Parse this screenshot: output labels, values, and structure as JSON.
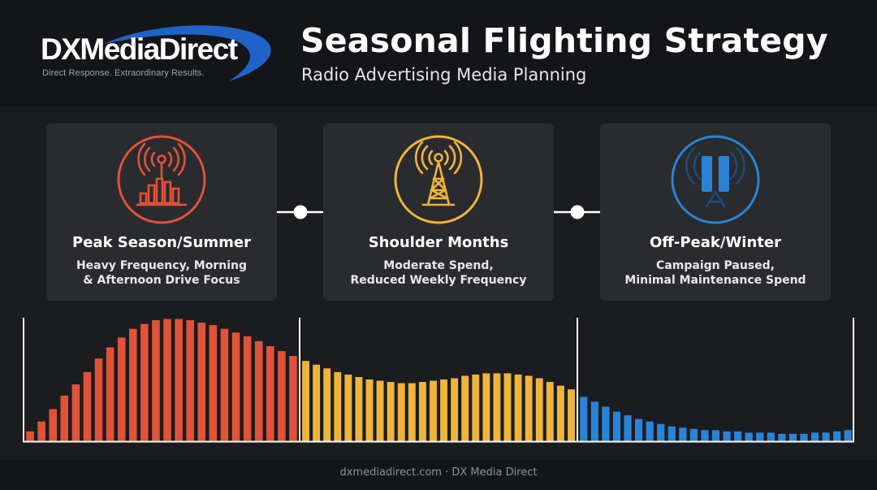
{
  "brand": {
    "name": "DXMediaDirect",
    "tagline": "Direct Response. Extraordinary Results."
  },
  "header": {
    "title": "Seasonal Flighting Strategy",
    "subtitle": "Radio Advertising Media Planning"
  },
  "phases": [
    {
      "title": "Peak Season/Summer",
      "desc_line1": "Heavy Frequency, Morning",
      "desc_line2": "& Afternoon Drive Focus",
      "icon": "radio-signal-bars-icon",
      "color": "#e0533a"
    },
    {
      "title": "Shoulder Months",
      "desc_line1": "Moderate Spend,",
      "desc_line2": "Reduced Weekly Frequency",
      "icon": "radio-tower-icon",
      "color": "#efb53a"
    },
    {
      "title": "Off-Peak/Winter",
      "desc_line1": "Campaign Paused,",
      "desc_line2": "Minimal Maintenance Spend",
      "icon": "paused-tower-icon",
      "color": "#2a83d6"
    }
  ],
  "chart_data": {
    "type": "bar",
    "title": "",
    "xlabel": "",
    "ylabel": "",
    "ylim": [
      0,
      100
    ],
    "grid": false,
    "legend": "none",
    "series": [
      {
        "phase": "Peak Season/Summer",
        "color": "#e0533a",
        "values": [
          8,
          16,
          26,
          37,
          46,
          56,
          67,
          76,
          84,
          91,
          95,
          98,
          99,
          99,
          98,
          96,
          94,
          91,
          88,
          85,
          81,
          77,
          73,
          69
        ]
      },
      {
        "phase": "Shoulder Months",
        "color": "#efb53a",
        "values": [
          65,
          62,
          59,
          56,
          54,
          52,
          50,
          49,
          48,
          47,
          47,
          48,
          49,
          50,
          51,
          53,
          54,
          55,
          55,
          55,
          54,
          53,
          51,
          48,
          45,
          42
        ]
      },
      {
        "phase": "Off-Peak/Winter",
        "color": "#2a83d6",
        "values": [
          36,
          32,
          28,
          24,
          21,
          18,
          16,
          14,
          12,
          11,
          10,
          9,
          9,
          8,
          8,
          7,
          7,
          7,
          6,
          6,
          6,
          7,
          7,
          8,
          9
        ]
      }
    ]
  },
  "footer": {
    "text": "dxmediadirect.com · DX Media Direct"
  }
}
